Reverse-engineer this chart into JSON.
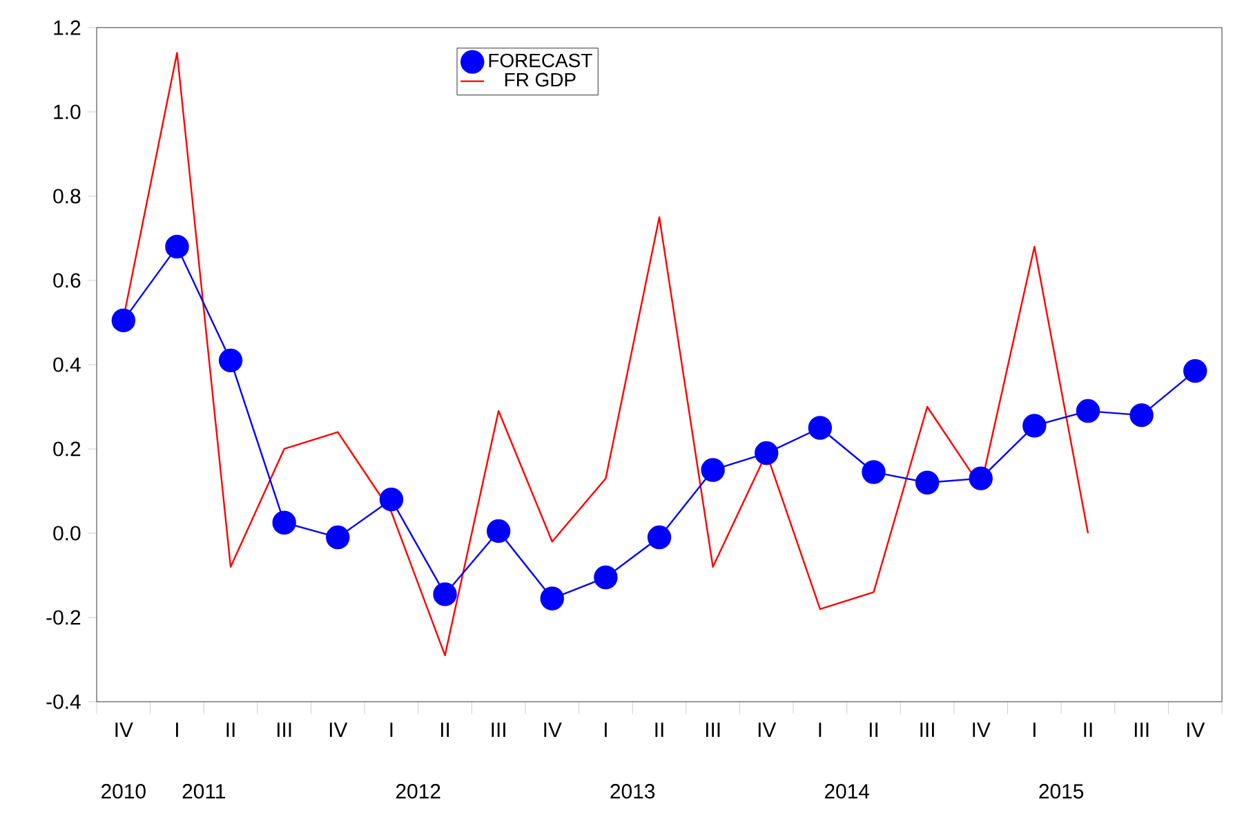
{
  "chart_data": {
    "type": "line",
    "categories": [
      "IV",
      "I",
      "II",
      "III",
      "IV",
      "I",
      "II",
      "III",
      "IV",
      "I",
      "II",
      "III",
      "IV",
      "I",
      "II",
      "III",
      "IV",
      "I",
      "II",
      "III",
      "IV"
    ],
    "series": [
      {
        "name": "FORECAST",
        "color": "#0000ff",
        "marker": "circle",
        "values": [
          0.505,
          0.68,
          0.41,
          0.025,
          -0.01,
          0.08,
          -0.145,
          0.005,
          -0.155,
          -0.105,
          -0.01,
          0.15,
          0.19,
          0.25,
          0.145,
          0.12,
          0.13,
          0.255,
          0.29,
          0.28,
          0.385
        ]
      },
      {
        "name": "FR GDP",
        "color": "#ff0000",
        "marker": "none",
        "values": [
          0.51,
          1.14,
          -0.08,
          0.2,
          0.24,
          0.05,
          -0.29,
          0.29,
          -0.02,
          0.13,
          0.75,
          -0.08,
          0.19,
          -0.18,
          -0.14,
          0.3,
          0.11,
          0.68,
          0.0,
          null,
          null
        ]
      }
    ],
    "ylim": [
      -0.4,
      1.2
    ],
    "yticks": [
      {
        "value": -0.4,
        "label": "-0.4"
      },
      {
        "value": -0.2,
        "label": "-0.2"
      },
      {
        "value": 0,
        "label": "0.0"
      },
      {
        "value": 0.2,
        "label": "0.2"
      },
      {
        "value": 0.4,
        "label": "0.4"
      },
      {
        "value": 0.6,
        "label": "0.6"
      },
      {
        "value": 0.8,
        "label": "0.8"
      },
      {
        "value": 1.0,
        "label": "1.0"
      },
      {
        "value": 1.2,
        "label": "1.2"
      }
    ],
    "annotations": [
      "2010",
      "2011",
      "2012",
      "2013",
      "2014",
      "2015"
    ],
    "legend": "top",
    "grid": false
  }
}
